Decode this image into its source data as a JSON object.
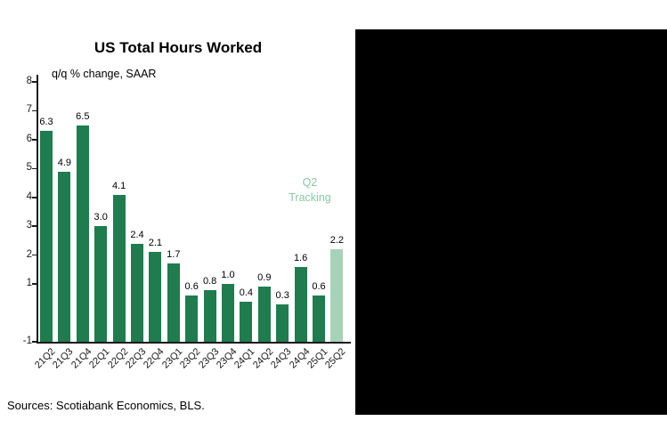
{
  "page": {
    "source_note": "Sources: Scotiabank Economics, BLS."
  },
  "colors": {
    "bar": "#1f7c4e",
    "highlight_bar": "#a6d3b8",
    "annotation_text": "#8bc7a2",
    "axis": "#1a1a1a",
    "text": "#000000",
    "panel_background": "#000000",
    "page_background": "#ffffff"
  },
  "chart_data": {
    "type": "bar",
    "title": "US Total Hours Worked",
    "ylabel": "q/q % change, SAAR",
    "categories": [
      "21Q2",
      "21Q3",
      "21Q4",
      "22Q1",
      "22Q2",
      "22Q3",
      "22Q4",
      "23Q1",
      "23Q2",
      "23Q3",
      "23Q4",
      "24Q1",
      "24Q2",
      "24Q3",
      "24Q4",
      "25Q1",
      "25Q2"
    ],
    "values": [
      6.3,
      4.9,
      6.5,
      3.0,
      4.1,
      2.4,
      2.1,
      1.7,
      0.6,
      0.8,
      1.0,
      0.4,
      0.9,
      0.3,
      1.6,
      0.6,
      2.2
    ],
    "value_labels": [
      "6.3",
      "4.9",
      "6.5",
      "3.0",
      "4.1",
      "2.4",
      "2.1",
      "1.7",
      "0.6",
      "0.8",
      "1.0",
      "0.4",
      "0.9",
      "0.3",
      "1.6",
      "0.6",
      "2.2"
    ],
    "yticks": [
      8,
      7,
      6,
      5,
      4,
      3,
      2,
      1,
      -1
    ],
    "ylim": [
      -1,
      8
    ],
    "grid": false,
    "legend": "none",
    "highlight_index": 16,
    "highlight_label": [
      "Q2",
      "Tracking"
    ],
    "source": "Sources: Scotiabank Economics, BLS."
  }
}
